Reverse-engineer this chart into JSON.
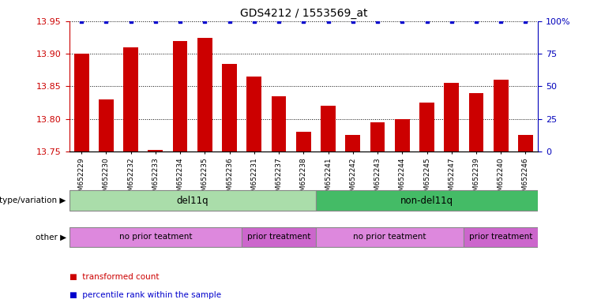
{
  "title": "GDS4212 / 1553569_at",
  "samples": [
    "GSM652229",
    "GSM652230",
    "GSM652232",
    "GSM652233",
    "GSM652234",
    "GSM652235",
    "GSM652236",
    "GSM652231",
    "GSM652237",
    "GSM652238",
    "GSM652241",
    "GSM652242",
    "GSM652243",
    "GSM652244",
    "GSM652245",
    "GSM652247",
    "GSM652239",
    "GSM652240",
    "GSM652246"
  ],
  "red_values": [
    13.9,
    13.83,
    13.91,
    13.752,
    13.92,
    13.925,
    13.885,
    13.865,
    13.835,
    13.78,
    13.82,
    13.775,
    13.795,
    13.8,
    13.825,
    13.855,
    13.84,
    13.86,
    13.775
  ],
  "blue_values": [
    100,
    100,
    100,
    100,
    100,
    100,
    100,
    100,
    100,
    100,
    100,
    100,
    100,
    100,
    100,
    100,
    100,
    100,
    100
  ],
  "ylim_left": [
    13.75,
    13.95
  ],
  "ylim_right": [
    0,
    100
  ],
  "yticks_left": [
    13.75,
    13.8,
    13.85,
    13.9,
    13.95
  ],
  "yticks_right": [
    0,
    25,
    50,
    75,
    100
  ],
  "ytick_labels_right": [
    "0",
    "25",
    "50",
    "75",
    "100%"
  ],
  "bar_color": "#cc0000",
  "dot_color": "#0000cc",
  "bar_width": 0.6,
  "genotype_groups": [
    {
      "label": "del11q",
      "start": 0,
      "end": 10,
      "color": "#aaddaa"
    },
    {
      "label": "non-del11q",
      "start": 10,
      "end": 19,
      "color": "#44bb66"
    }
  ],
  "other_groups": [
    {
      "label": "no prior teatment",
      "start": 0,
      "end": 7,
      "color": "#dd88dd"
    },
    {
      "label": "prior treatment",
      "start": 7,
      "end": 10,
      "color": "#cc66cc"
    },
    {
      "label": "no prior teatment",
      "start": 10,
      "end": 16,
      "color": "#dd88dd"
    },
    {
      "label": "prior treatment",
      "start": 16,
      "end": 19,
      "color": "#cc66cc"
    }
  ],
  "legend_items": [
    {
      "label": "transformed count",
      "color": "#cc0000"
    },
    {
      "label": "percentile rank within the sample",
      "color": "#0000cc"
    }
  ],
  "genotype_label": "genotype/variation",
  "other_label": "other",
  "background_color": "#ffffff",
  "label_color_red": "#cc0000",
  "label_color_blue": "#0000bb"
}
